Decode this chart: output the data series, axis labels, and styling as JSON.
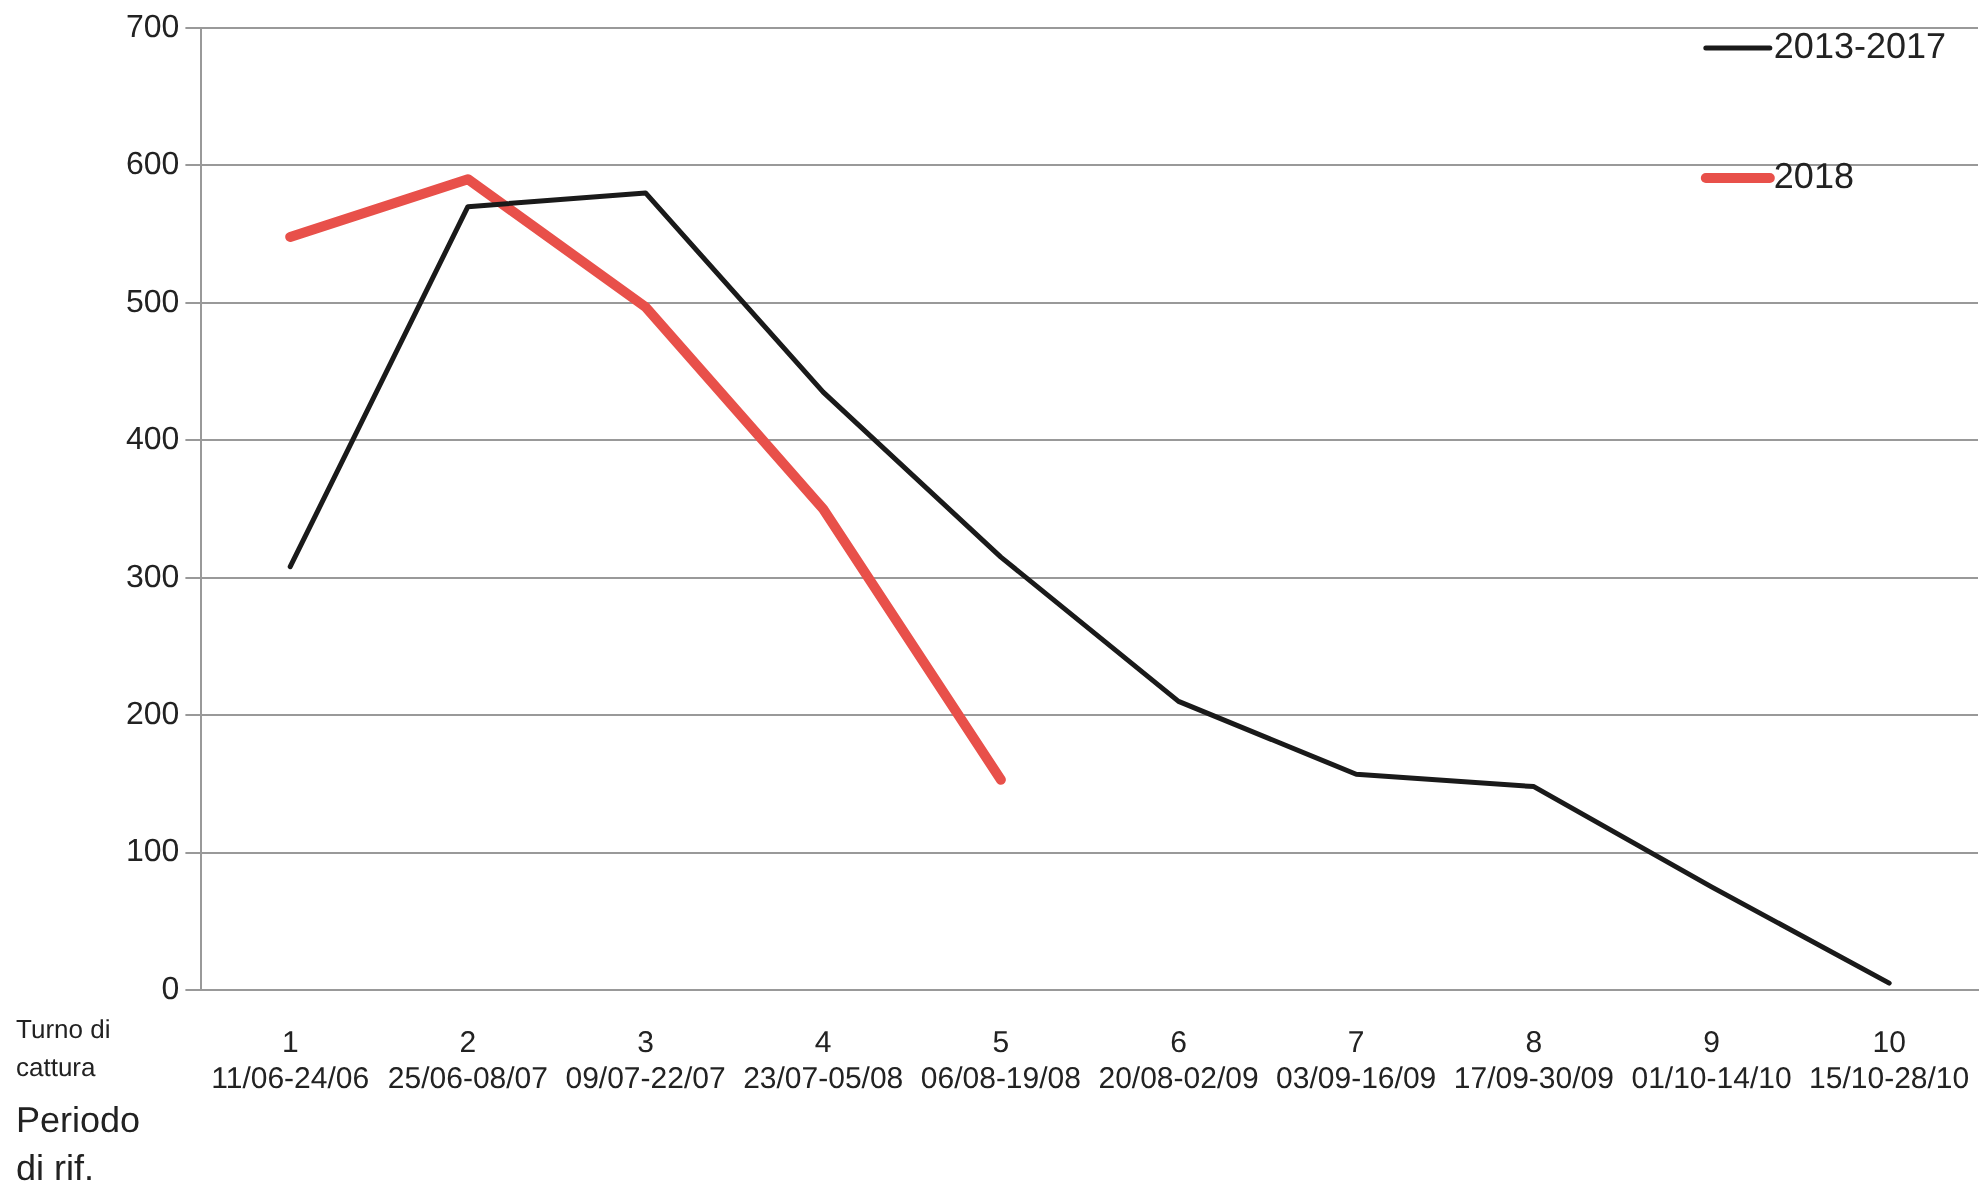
{
  "chart_data": {
    "type": "line",
    "categories": [
      "1\n11/06-24/06",
      "2\n25/06-08/07",
      "3\n09/07-22/07",
      "4\n23/07-05/08",
      "5\n06/08-19/08",
      "6\n20/08-02/09",
      "7\n03/09-16/09",
      "8\n17/09-30/09",
      "9\n01/10-14/10",
      "10\n15/10-28/10"
    ],
    "series": [
      {
        "name": "2013-2017",
        "color": "#1a1a1a",
        "values": [
          308,
          570,
          580,
          435,
          315,
          210,
          157,
          148,
          75,
          5
        ]
      },
      {
        "name": "2018",
        "color": "#e8504a",
        "values": [
          548,
          590,
          497,
          350,
          153,
          null,
          null,
          null,
          null,
          null
        ]
      }
    ],
    "ylim": [
      0,
      700
    ],
    "yticks": [
      0,
      100,
      200,
      300,
      400,
      500,
      600,
      700
    ],
    "grid": "y",
    "legend": "top right",
    "marker": "none",
    "line_style": "solid",
    "annotations": [
      "Turno di cattura",
      "Periodo di rif."
    ]
  }
}
